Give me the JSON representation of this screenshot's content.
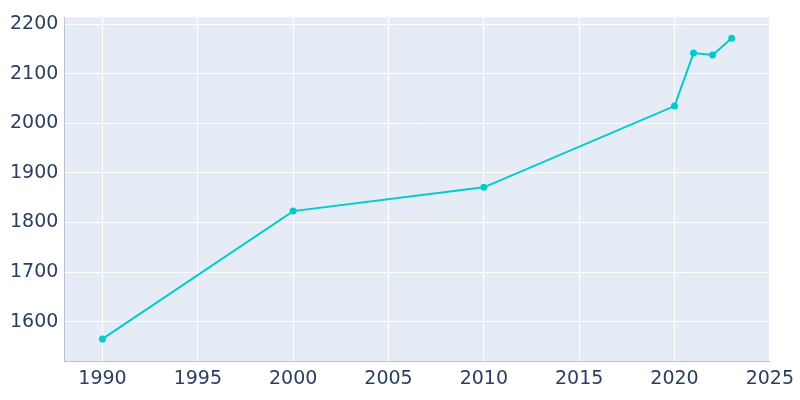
{
  "chart_data": {
    "type": "line",
    "x": [
      1990,
      2000,
      2010,
      2020,
      2021,
      2022,
      2023
    ],
    "values": [
      1565,
      1823,
      1871,
      2035,
      2142,
      2138,
      2172
    ],
    "color": "#00cccc",
    "marker": "circle",
    "xlim": [
      1988,
      2025
    ],
    "xticks": [
      1990,
      1995,
      2000,
      2005,
      2010,
      2015,
      2020,
      2025
    ],
    "ylim": [
      1520,
      2214
    ],
    "yticks": [
      1600,
      1700,
      1800,
      1900,
      2000,
      2100,
      2200
    ],
    "grid": true
  }
}
